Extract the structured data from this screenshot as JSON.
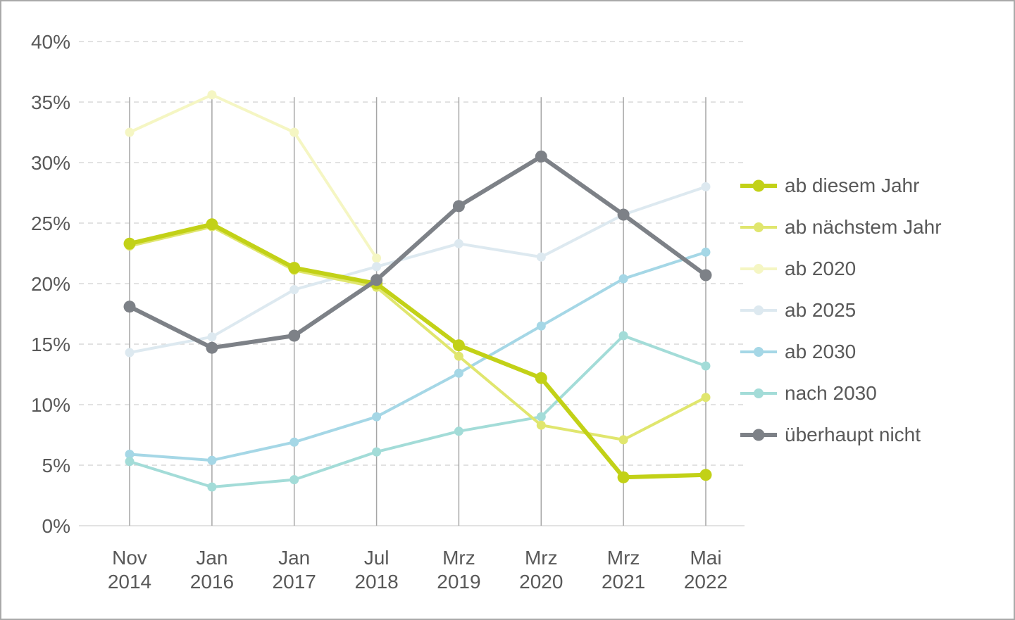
{
  "chart_data": {
    "type": "line",
    "title": "",
    "xlabel": "",
    "ylabel": "",
    "ylim": [
      0,
      40
    ],
    "grid": "horizontal-dashed-with-vertical-category-lines",
    "legend_position": "right",
    "y_ticks": [
      "0%",
      "5%",
      "10%",
      "15%",
      "20%",
      "25%",
      "30%",
      "35%",
      "40%"
    ],
    "categories": [
      "Nov 2014",
      "Jan 2016",
      "Jan 2017",
      "Jul 2018",
      "Mrz 2019",
      "Mrz 2020",
      "Mrz 2021",
      "Mai 2022"
    ],
    "series": [
      {
        "name": "ab diesem Jahr",
        "color": "#c2d117",
        "width": 6,
        "values": [
          23.3,
          24.9,
          21.3,
          20.0,
          14.9,
          12.2,
          4.0,
          4.2
        ]
      },
      {
        "name": "ab nächstem Jahr",
        "color": "#e0e66e",
        "width": 4,
        "values": [
          23.1,
          24.7,
          21.1,
          19.7,
          14.0,
          8.3,
          7.1,
          10.6
        ]
      },
      {
        "name": "ab 2020",
        "color": "#f5f6c3",
        "width": 4,
        "values": [
          32.5,
          35.6,
          32.5,
          22.1,
          null,
          null,
          null,
          null
        ]
      },
      {
        "name": "ab 2025",
        "color": "#dde9f0",
        "width": 4,
        "values": [
          14.3,
          15.6,
          19.5,
          21.4,
          23.3,
          22.2,
          25.7,
          28.0
        ]
      },
      {
        "name": "ab 2030",
        "color": "#a5d7e6",
        "width": 4,
        "values": [
          5.9,
          5.4,
          6.9,
          9.0,
          12.6,
          16.5,
          20.4,
          22.6
        ]
      },
      {
        "name": "nach 2030",
        "color": "#a3dcd8",
        "width": 4,
        "values": [
          5.3,
          3.2,
          3.8,
          6.1,
          7.8,
          9.0,
          15.7,
          13.2
        ]
      },
      {
        "name": "überhaupt nicht",
        "color": "#7d8187",
        "width": 6,
        "values": [
          18.1,
          14.7,
          15.7,
          20.3,
          26.4,
          30.5,
          25.7,
          20.7
        ]
      }
    ],
    "colors": {
      "axis_text": "#595959",
      "gridline": "#d9d9d9",
      "category_line": "#a6a6a6"
    }
  }
}
